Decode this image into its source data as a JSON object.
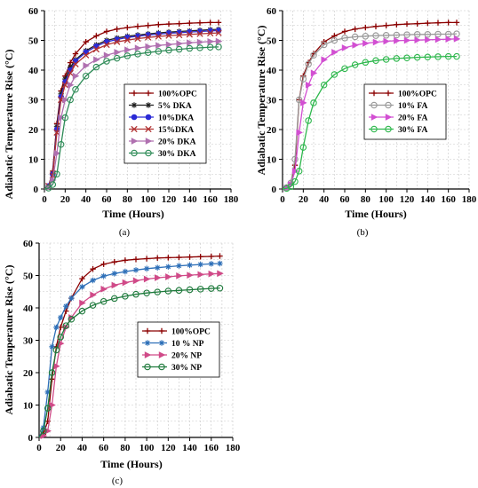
{
  "figure": {
    "panels": [
      {
        "caption": "(a)"
      },
      {
        "caption": "(b)"
      },
      {
        "caption": "(c)"
      }
    ]
  },
  "colors": {
    "OPC": "#8b0000",
    "DKA5": "#202020",
    "DKA10": "#2b2bd6",
    "DKA15": "#b03030",
    "DKA20": "#b070b0",
    "DKA30": "#2e8b57",
    "FA10": "#999999",
    "FA20": "#d24fd2",
    "FA30": "#2eb84d",
    "NP10": "#2d6fb8",
    "NP20": "#d04a88",
    "NP30": "#1e7a3c"
  },
  "chart_data": [
    {
      "type": "line",
      "xlabel": "Time (Hours)",
      "ylabel": "Adiabatic Temperature Rise (°C)",
      "xlim": [
        0,
        180
      ],
      "ylim": [
        0,
        60
      ],
      "xticks": [
        "0",
        "20",
        "40",
        "60",
        "80",
        "100",
        "120",
        "140",
        "160",
        "180"
      ],
      "yticks": [
        "0",
        "10",
        "20",
        "30",
        "40",
        "50",
        "60"
      ],
      "grid": true,
      "legend_position": "center-right",
      "x": [
        0,
        4,
        8,
        12,
        16,
        20,
        25,
        30,
        40,
        50,
        60,
        70,
        80,
        90,
        100,
        110,
        120,
        130,
        140,
        150,
        160,
        168
      ],
      "series": [
        {
          "name": "100%OPC",
          "color_key": "OPC",
          "marker": "plus",
          "values": [
            0,
            1,
            6,
            22,
            33,
            38,
            42.5,
            45.5,
            49.5,
            51.5,
            53,
            53.8,
            54.3,
            54.7,
            55,
            55.3,
            55.5,
            55.6,
            55.8,
            55.9,
            56,
            56
          ]
        },
        {
          "name": "5% DKA",
          "color_key": "DKA5",
          "marker": "star",
          "values": [
            0,
            1,
            5,
            21,
            32,
            37,
            41,
            43.5,
            46.5,
            48.5,
            50,
            50.8,
            51.4,
            51.8,
            52.2,
            52.5,
            52.8,
            53,
            53.2,
            53.4,
            53.6,
            53.7
          ]
        },
        {
          "name": "10%DKA",
          "color_key": "DKA10",
          "marker": "circle-fill",
          "values": [
            0,
            1,
            5,
            20,
            31,
            36,
            40,
            43,
            46,
            48,
            49.5,
            50.3,
            51,
            51.4,
            51.8,
            52.1,
            52.4,
            52.6,
            52.8,
            53,
            53.2,
            53.3
          ]
        },
        {
          "name": "15%DKA",
          "color_key": "DKA15",
          "marker": "x",
          "values": [
            0,
            1,
            4.5,
            19,
            30,
            35,
            39,
            42,
            45,
            47,
            48.5,
            49.5,
            50.1,
            50.6,
            51,
            51.3,
            51.6,
            51.8,
            52,
            52.2,
            52.4,
            52.5
          ]
        },
        {
          "name": "20% DKA",
          "color_key": "DKA20",
          "marker": "triangle-right",
          "values": [
            0,
            0.5,
            3,
            12,
            24,
            30,
            35,
            38,
            41.5,
            43.5,
            45,
            46,
            46.8,
            47.4,
            47.9,
            48.3,
            48.6,
            48.9,
            49.2,
            49.4,
            49.6,
            49.7
          ]
        },
        {
          "name": "30% DKA",
          "color_key": "DKA30",
          "marker": "circle-open",
          "values": [
            0,
            0.3,
            1.5,
            5,
            15,
            24,
            30,
            33.5,
            38,
            41,
            43,
            44,
            44.8,
            45.4,
            45.9,
            46.3,
            46.7,
            47,
            47.3,
            47.5,
            47.7,
            47.8
          ]
        }
      ]
    },
    {
      "type": "line",
      "xlabel": "Time (Hours)",
      "ylabel": "Adiabatic Temperature Rise (°C)",
      "xlim": [
        0,
        180
      ],
      "ylim": [
        0,
        60
      ],
      "xticks": [
        "0",
        "20",
        "40",
        "60",
        "80",
        "100",
        "120",
        "140",
        "160",
        "180"
      ],
      "yticks": [
        "0",
        "10",
        "20",
        "30",
        "40",
        "50",
        "60"
      ],
      "grid": true,
      "legend_position": "center-right",
      "x": [
        0,
        4,
        8,
        12,
        16,
        20,
        25,
        30,
        40,
        50,
        60,
        70,
        80,
        90,
        100,
        110,
        120,
        130,
        140,
        150,
        160,
        168
      ],
      "series": [
        {
          "name": "100%OPC",
          "color_key": "OPC",
          "marker": "plus",
          "values": [
            0,
            0.5,
            2,
            8,
            30,
            38,
            42.5,
            45.5,
            49.5,
            51.5,
            53,
            53.8,
            54.3,
            54.7,
            55,
            55.3,
            55.5,
            55.6,
            55.8,
            55.9,
            56,
            56
          ]
        },
        {
          "name": "10% FA",
          "color_key": "FA10",
          "marker": "circle-open",
          "values": [
            0,
            0.5,
            2,
            10,
            30,
            37,
            42,
            45,
            48.5,
            50,
            50.8,
            51.2,
            51.4,
            51.6,
            51.7,
            51.8,
            51.9,
            52,
            52,
            52.1,
            52.1,
            52.2
          ]
        },
        {
          "name": "20% FA",
          "color_key": "FA20",
          "marker": "triangle-right",
          "values": [
            0,
            0.3,
            1.5,
            6,
            19,
            29,
            35,
            39,
            43.5,
            46,
            47.5,
            48.4,
            49,
            49.4,
            49.7,
            49.9,
            50,
            50.1,
            50.2,
            50.3,
            50.4,
            50.5
          ]
        },
        {
          "name": "30% FA",
          "color_key": "FA30",
          "marker": "circle-open",
          "values": [
            0,
            0.2,
            0.8,
            2.5,
            6,
            14,
            23,
            29,
            35,
            38.5,
            40.5,
            41.8,
            42.6,
            43.2,
            43.6,
            43.9,
            44.1,
            44.3,
            44.4,
            44.5,
            44.6,
            44.6
          ]
        }
      ]
    },
    {
      "type": "line",
      "xlabel": "Time (Hours)",
      "ylabel": "Adiabatic Temperature Rise (°C)",
      "xlim": [
        0,
        180
      ],
      "ylim": [
        0,
        60
      ],
      "xticks": [
        "0",
        "20",
        "40",
        "60",
        "80",
        "100",
        "120",
        "140",
        "160",
        "180"
      ],
      "yticks": [
        "0",
        "10",
        "20",
        "30",
        "40",
        "50",
        "60"
      ],
      "grid": true,
      "legend_position": "center-right",
      "x": [
        0,
        4,
        8,
        12,
        16,
        20,
        25,
        30,
        40,
        50,
        60,
        70,
        80,
        90,
        100,
        110,
        120,
        130,
        140,
        150,
        160,
        168
      ],
      "series": [
        {
          "name": "100%OPC",
          "color_key": "OPC",
          "marker": "plus",
          "values": [
            0,
            1,
            5,
            18,
            28,
            34,
            39,
            43,
            49,
            52,
            53.5,
            54.2,
            54.7,
            55,
            55.2,
            55.4,
            55.5,
            55.6,
            55.7,
            55.8,
            55.9,
            56
          ]
        },
        {
          "name": "10 % NP",
          "color_key": "NP10",
          "marker": "star",
          "values": [
            0,
            3,
            14,
            28,
            34,
            37,
            40.5,
            43,
            46.5,
            48.5,
            49.8,
            50.6,
            51.2,
            51.7,
            52.1,
            52.4,
            52.7,
            53,
            53.2,
            53.4,
            53.6,
            53.7
          ]
        },
        {
          "name": "20% NP",
          "color_key": "NP20",
          "marker": "triangle-right",
          "values": [
            0,
            0.5,
            2,
            10,
            22,
            29,
            34,
            37,
            41.5,
            44,
            45.8,
            47,
            47.8,
            48.4,
            48.9,
            49.3,
            49.6,
            49.9,
            50.1,
            50.3,
            50.5,
            50.6
          ]
        },
        {
          "name": "30% NP",
          "color_key": "NP30",
          "marker": "circle-open",
          "values": [
            0,
            2,
            9,
            20,
            27,
            31,
            34.5,
            36.5,
            39,
            40.8,
            42,
            42.9,
            43.6,
            44.2,
            44.6,
            44.9,
            45.2,
            45.4,
            45.6,
            45.8,
            46,
            46.1
          ]
        }
      ]
    }
  ]
}
